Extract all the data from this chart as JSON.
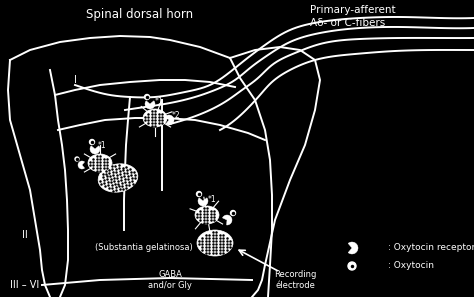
{
  "bg_color": "#000000",
  "fg_color": "#ffffff",
  "title_text": "Spinal dorsal horn",
  "title2_text": "Primary-afferent\nAδ- or C-fibers",
  "label_I": "I",
  "label_II": "II",
  "label_sub": "(Substantia gelatinosa)",
  "label_III": "III – VI",
  "label_GABA": "GABA\nand/or Gly",
  "label_recording": "Recording\nélectrode",
  "label_receptor": ": Oxytocin receptor",
  "label_oxytocin": ": Oxytocin"
}
